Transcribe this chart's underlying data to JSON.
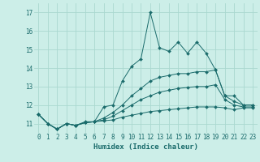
{
  "xlabel": "Humidex (Indice chaleur)",
  "background_color": "#cceee8",
  "grid_color": "#aad8d0",
  "line_color": "#1a6b6b",
  "x": [
    0,
    1,
    2,
    3,
    4,
    5,
    6,
    7,
    8,
    9,
    10,
    11,
    12,
    13,
    14,
    15,
    16,
    17,
    18,
    19,
    20,
    21,
    22,
    23
  ],
  "line1": [
    11.5,
    11.0,
    10.7,
    11.0,
    10.9,
    11.1,
    11.1,
    11.9,
    12.0,
    13.3,
    14.1,
    14.5,
    17.0,
    15.1,
    14.9,
    15.4,
    14.8,
    15.4,
    14.8,
    13.9,
    12.5,
    12.5,
    12.0,
    12.0
  ],
  "line2": [
    11.5,
    11.0,
    10.7,
    11.0,
    10.9,
    11.05,
    11.1,
    11.3,
    11.6,
    12.0,
    12.5,
    12.9,
    13.3,
    13.5,
    13.6,
    13.7,
    13.7,
    13.8,
    13.8,
    13.9,
    12.5,
    12.2,
    12.0,
    12.0
  ],
  "line3": [
    11.5,
    11.0,
    10.7,
    11.0,
    10.9,
    11.05,
    11.1,
    11.2,
    11.4,
    11.7,
    12.0,
    12.3,
    12.5,
    12.7,
    12.8,
    12.9,
    12.95,
    13.0,
    13.0,
    13.1,
    12.3,
    12.0,
    11.9,
    11.9
  ],
  "line4": [
    11.5,
    11.0,
    10.7,
    11.0,
    10.9,
    11.05,
    11.1,
    11.15,
    11.2,
    11.35,
    11.45,
    11.55,
    11.65,
    11.7,
    11.75,
    11.8,
    11.85,
    11.9,
    11.9,
    11.9,
    11.85,
    11.75,
    11.85,
    11.85
  ],
  "ylim": [
    10.5,
    17.5
  ],
  "yticks": [
    11,
    12,
    13,
    14,
    15,
    16,
    17
  ],
  "xlim": [
    -0.5,
    23.5
  ],
  "xticks": [
    0,
    1,
    2,
    3,
    4,
    5,
    6,
    7,
    8,
    9,
    10,
    11,
    12,
    13,
    14,
    15,
    16,
    17,
    18,
    19,
    20,
    21,
    22,
    23
  ]
}
